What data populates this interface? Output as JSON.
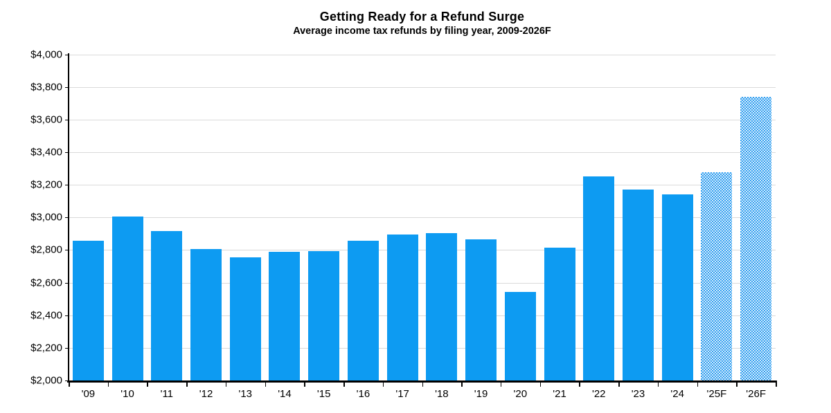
{
  "chart_data": {
    "type": "bar",
    "title": "Getting Ready for a Refund Surge",
    "subtitle": "Average income tax refunds by filing year, 2009-2026F",
    "categories": [
      "'09",
      "'10",
      "'11",
      "'12",
      "'13",
      "'14",
      "'15",
      "'16",
      "'17",
      "'18",
      "'19",
      "'20",
      "'21",
      "'22",
      "'23",
      "'24",
      "'25F",
      "'26F"
    ],
    "values": [
      2855,
      3005,
      2915,
      2805,
      2755,
      2790,
      2795,
      2855,
      2895,
      2905,
      2865,
      2545,
      2815,
      3250,
      3170,
      3140,
      3275,
      3740
    ],
    "forecast_mask": [
      false,
      false,
      false,
      false,
      false,
      false,
      false,
      false,
      false,
      false,
      false,
      false,
      false,
      false,
      false,
      false,
      true,
      true
    ],
    "xlabel": "",
    "ylabel": "",
    "ylim": [
      2000,
      4000
    ],
    "ytick_step": 200,
    "ytick_labels": [
      "$4,000",
      "$3,800",
      "$3,600",
      "$3,400",
      "$3,200",
      "$3,000",
      "$2,800",
      "$2,600",
      "$2,400",
      "$2,200",
      "$2,000"
    ],
    "grid": "horizontal",
    "legend": "none",
    "colors": {
      "bar": "#0d9bf2",
      "forecast_pattern_fg": "#2f9ff0",
      "forecast_pattern_bg": "#d9ecfc",
      "gridline": "#d9d9d9",
      "axis": "#000000",
      "text": "#000000"
    }
  }
}
